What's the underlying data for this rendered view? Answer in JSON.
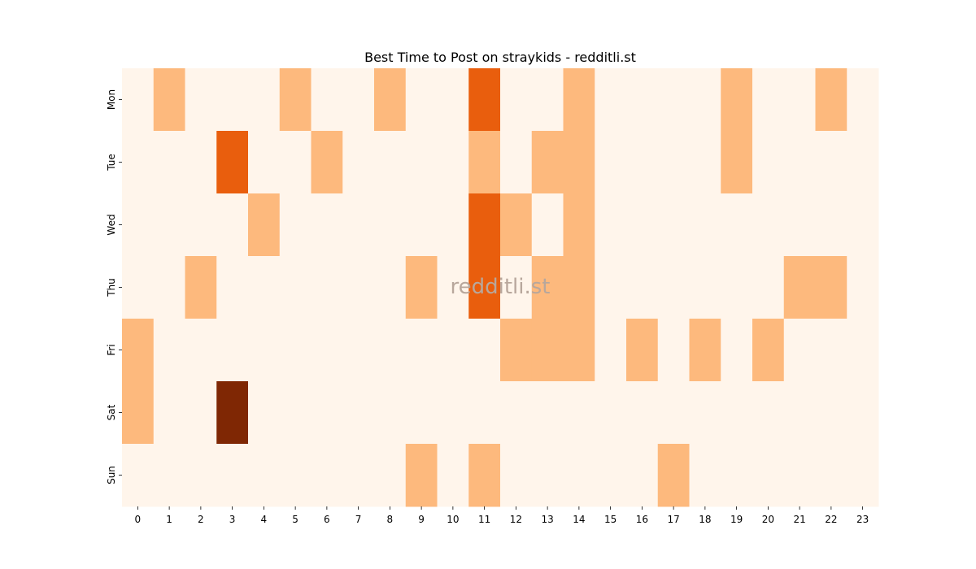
{
  "chart_data": {
    "type": "heatmap",
    "title": "Best Time to Post on straykids - redditli.st",
    "watermark": "redditli.st",
    "x_labels": [
      "0",
      "1",
      "2",
      "3",
      "4",
      "5",
      "6",
      "7",
      "8",
      "9",
      "10",
      "11",
      "12",
      "13",
      "14",
      "15",
      "16",
      "17",
      "18",
      "19",
      "20",
      "21",
      "22",
      "23"
    ],
    "y_labels": [
      "Mon",
      "Tue",
      "Wed",
      "Thu",
      "Fri",
      "Sat",
      "Sun"
    ],
    "xlabel": "",
    "ylabel": "",
    "colorbar": false,
    "colormap": "Oranges",
    "levels": {
      "0": "#fff5eb",
      "1": "#fdb97d",
      "2": "#e95e0d",
      "3": "#7f2704"
    },
    "values": [
      [
        0,
        1,
        0,
        0,
        0,
        1,
        0,
        0,
        1,
        0,
        0,
        2,
        0,
        0,
        1,
        0,
        0,
        0,
        0,
        1,
        0,
        0,
        1,
        0
      ],
      [
        0,
        0,
        0,
        2,
        0,
        0,
        1,
        0,
        0,
        0,
        0,
        1,
        0,
        1,
        1,
        0,
        0,
        0,
        0,
        1,
        0,
        0,
        0,
        0
      ],
      [
        0,
        0,
        0,
        0,
        1,
        0,
        0,
        0,
        0,
        0,
        0,
        2,
        1,
        0,
        1,
        0,
        0,
        0,
        0,
        0,
        0,
        0,
        0,
        0
      ],
      [
        0,
        0,
        1,
        0,
        0,
        0,
        0,
        0,
        0,
        1,
        0,
        2,
        0,
        1,
        1,
        0,
        0,
        0,
        0,
        0,
        0,
        1,
        1,
        0
      ],
      [
        1,
        0,
        0,
        0,
        0,
        0,
        0,
        0,
        0,
        0,
        0,
        0,
        1,
        1,
        1,
        0,
        1,
        0,
        1,
        0,
        1,
        0,
        0,
        0
      ],
      [
        1,
        0,
        0,
        3,
        0,
        0,
        0,
        0,
        0,
        0,
        0,
        0,
        0,
        0,
        0,
        0,
        0,
        0,
        0,
        0,
        0,
        0,
        0,
        0
      ],
      [
        0,
        0,
        0,
        0,
        0,
        0,
        0,
        0,
        0,
        1,
        0,
        1,
        0,
        0,
        0,
        0,
        0,
        1,
        0,
        0,
        0,
        0,
        0,
        0
      ]
    ]
  }
}
